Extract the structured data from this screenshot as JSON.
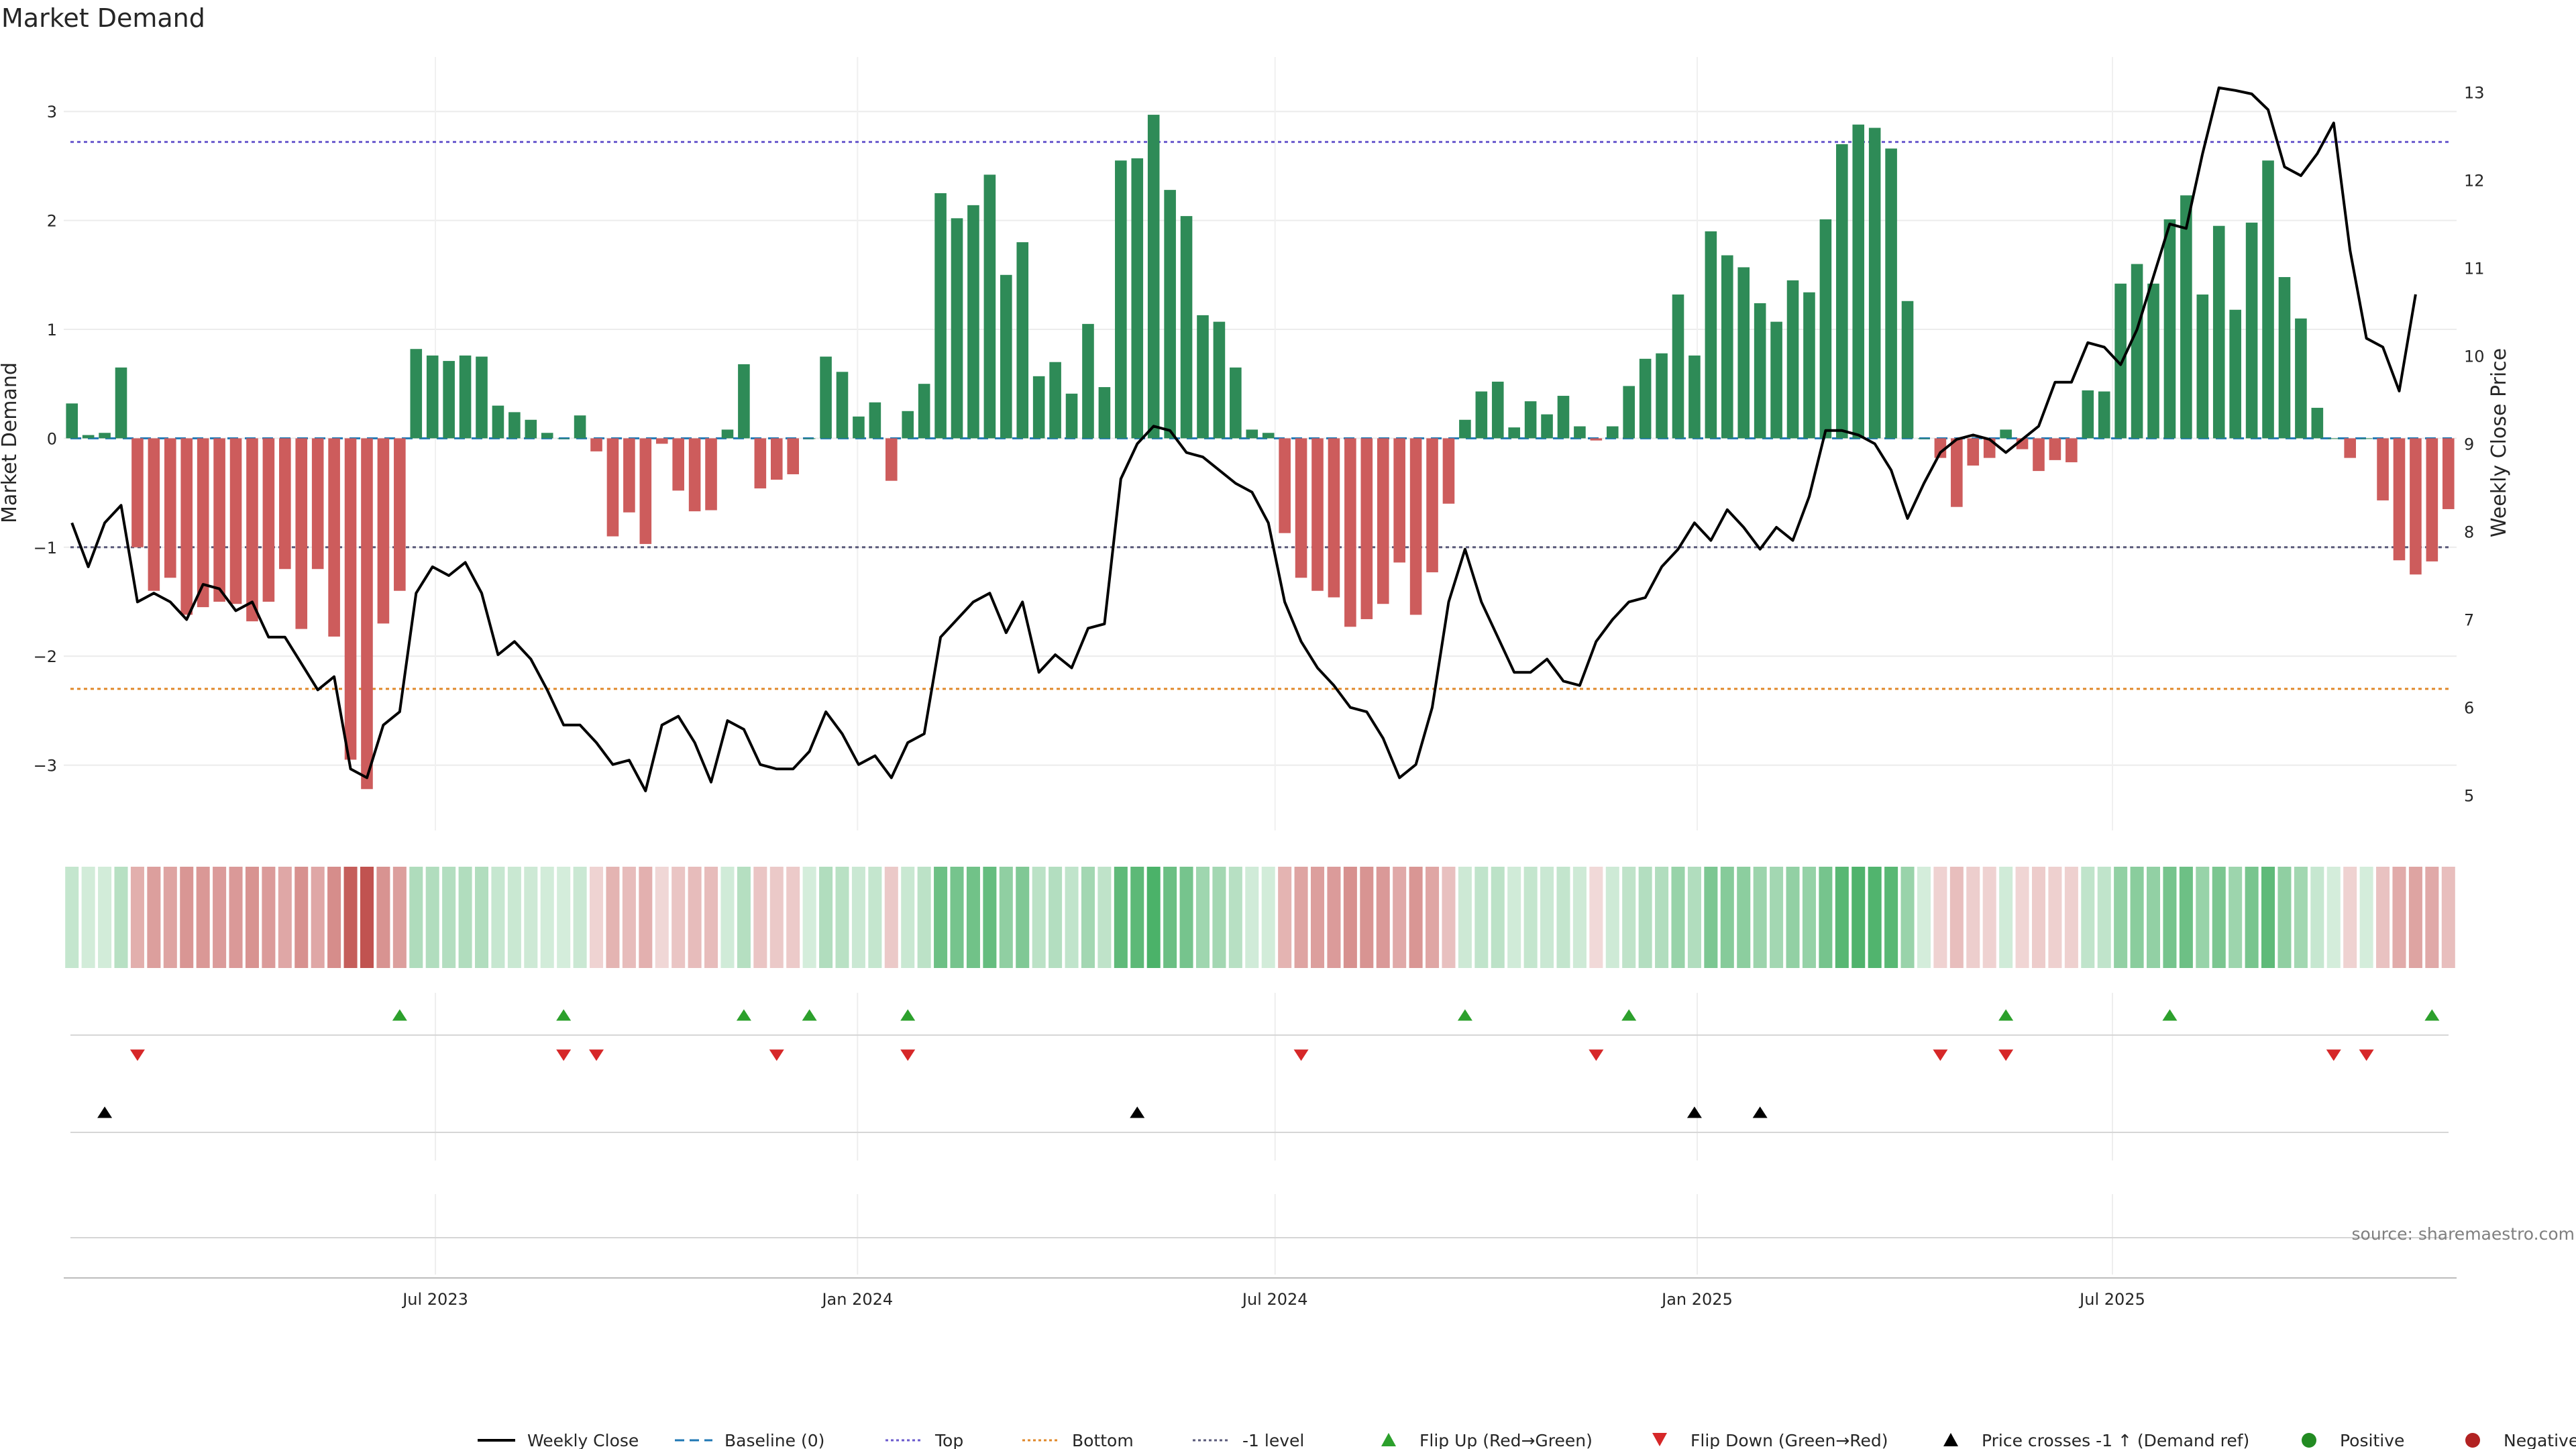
{
  "chart_data": {
    "type": "bar",
    "title": "Market Demand",
    "ylabel": "Market Demand",
    "y2label": "Weekly Close Price",
    "ylim": [
      -3.6,
      3.5
    ],
    "y2lim": [
      4.6,
      13.4
    ],
    "yticks": [
      -3,
      -2,
      -1,
      0,
      1,
      2,
      3
    ],
    "yticklabels": [
      "−3",
      "−2",
      "−1",
      "0",
      "1",
      "2",
      "3"
    ],
    "y2ticks": [
      5,
      6,
      7,
      8,
      9,
      10,
      11,
      12,
      13
    ],
    "x_start": "2023-01-20",
    "x_end": "2025-11-28",
    "xticks": [
      {
        "date": "2023-07-01",
        "label": "Jul 2023"
      },
      {
        "date": "2024-01-01",
        "label": "Jan 2024"
      },
      {
        "date": "2024-07-01",
        "label": "Jul 2024"
      },
      {
        "date": "2025-01-01",
        "label": "Jan 2025"
      },
      {
        "date": "2025-07-01",
        "label": "Jul 2025"
      }
    ],
    "reference_lines": {
      "top": 2.72,
      "bottom": -2.3,
      "minus_one": -1,
      "baseline": 0
    },
    "series": [
      {
        "name": "Weekly Close",
        "type": "line",
        "color": "#000000",
        "values": [
          8.1,
          7.6,
          8.1,
          8.3,
          7.2,
          7.3,
          7.2,
          7.0,
          7.4,
          7.35,
          7.1,
          7.2,
          6.8,
          6.8,
          6.5,
          6.2,
          6.35,
          5.3,
          5.2,
          5.8,
          5.95,
          7.3,
          7.6,
          7.5,
          7.65,
          7.3,
          6.6,
          6.75,
          6.55,
          6.2,
          5.8,
          5.8,
          5.6,
          5.35,
          5.4,
          5.05,
          5.8,
          5.9,
          5.6,
          5.15,
          5.85,
          5.75,
          5.35,
          5.3,
          5.3,
          5.5,
          5.95,
          5.7,
          5.35,
          5.45,
          5.2,
          5.6,
          5.7,
          6.8,
          7.0,
          7.2,
          7.3,
          6.85,
          7.2,
          6.4,
          6.6,
          6.45,
          6.9,
          6.95,
          8.6,
          9.0,
          9.2,
          9.15,
          8.9,
          8.85,
          8.7,
          8.55,
          8.45,
          8.1,
          7.2,
          6.75,
          6.45,
          6.25,
          6.0,
          5.95,
          5.65,
          5.2,
          5.35,
          6.0,
          7.2,
          7.8,
          7.2,
          6.8,
          6.4,
          6.4,
          6.55,
          6.3,
          6.25,
          6.75,
          7.0,
          7.2,
          7.25,
          7.6,
          7.8,
          8.1,
          7.9,
          8.25,
          8.05,
          7.8,
          8.05,
          7.9,
          8.4,
          9.15,
          9.15,
          9.1,
          9.0,
          8.7,
          8.15,
          8.55,
          8.9,
          9.05,
          9.1,
          9.05,
          8.9,
          9.05,
          9.2,
          9.7,
          9.7,
          10.15,
          10.1,
          9.9,
          10.3,
          10.9,
          11.5,
          11.45,
          12.3,
          13.05,
          13.02,
          12.98,
          12.8,
          12.15,
          12.05,
          12.3,
          12.65,
          11.2,
          10.2,
          10.1,
          9.6,
          10.7
        ]
      },
      {
        "name": "Market Demand",
        "type": "bar",
        "values": [
          0.32,
          0.03,
          0.05,
          0.65,
          -1.0,
          -1.4,
          -1.28,
          -1.62,
          -1.55,
          -1.5,
          -1.52,
          -1.68,
          -1.5,
          -1.2,
          -1.75,
          -1.2,
          -1.82,
          -2.95,
          -3.22,
          -1.7,
          -1.4,
          0.82,
          0.76,
          0.71,
          0.76,
          0.75,
          0.3,
          0.24,
          0.17,
          0.05,
          0.0,
          0.21,
          -0.12,
          -0.9,
          -0.68,
          -0.97,
          -0.05,
          -0.48,
          -0.67,
          -0.66,
          0.08,
          0.68,
          -0.46,
          -0.38,
          -0.33,
          0.0,
          0.75,
          0.61,
          0.2,
          0.33,
          -0.39,
          0.25,
          0.5,
          2.25,
          2.02,
          2.14,
          2.42,
          1.5,
          1.8,
          0.57,
          0.7,
          0.41,
          1.05,
          0.47,
          2.55,
          2.57,
          2.97,
          2.28,
          2.04,
          1.13,
          1.07,
          0.65,
          0.08,
          0.05,
          -0.87,
          -1.28,
          -1.4,
          -1.46,
          -1.73,
          -1.66,
          -1.52,
          -1.14,
          -1.62,
          -1.23,
          -0.6,
          0.17,
          0.43,
          0.52,
          0.1,
          0.34,
          0.22,
          0.39,
          0.11,
          -0.02,
          0.11,
          0.48,
          0.73,
          0.78,
          1.32,
          0.76,
          1.9,
          1.68,
          1.57,
          1.24,
          1.07,
          1.45,
          1.34,
          2.01,
          2.7,
          2.88,
          2.85,
          2.66,
          1.26,
          0.0,
          -0.18,
          -0.63,
          -0.25,
          -0.18,
          0.08,
          -0.1,
          -0.3,
          -0.2,
          -0.22,
          0.44,
          0.43,
          1.42,
          1.6,
          1.42,
          2.01,
          2.23,
          1.32,
          1.95,
          1.18,
          1.98,
          2.55,
          1.48,
          1.1,
          0.28,
          0.0,
          -0.18,
          0.0,
          -0.57,
          -1.12,
          -1.25,
          -1.13,
          -0.65
        ]
      }
    ],
    "markers": {
      "flip_up": [
        10,
        15,
        20,
        22,
        25,
        42,
        47,
        58,
        63,
        71
      ],
      "flip_down": [
        2,
        15,
        16,
        21,
        25,
        37,
        46,
        56,
        58,
        68,
        69
      ],
      "price_cross": [
        1,
        32,
        49,
        51
      ]
    },
    "marker_weeks_note_skip": [],
    "legend": [
      "Weekly Close",
      "Baseline (0)",
      "Top",
      "Bottom",
      "-1 level",
      "Flip Up (Red→Green)",
      "Flip Down (Green→Red)",
      "Price crosses -1 ↑ (Demand ref)",
      "Positive",
      "Negative"
    ],
    "legend_position": "bottom",
    "source": "source: sharemaestro.com",
    "colors": {
      "positive": "#2e8b57",
      "negative": "#cd5c5c",
      "top": "#6a5acd",
      "bottom": "#e0882a",
      "minus_one": "#5a5a7a",
      "baseline": "#1f77b4",
      "flip_up": "#2ca02c",
      "flip_down": "#d62728",
      "cross": "#000000",
      "positive_dot": "#228b22",
      "negative_dot": "#b22222"
    }
  }
}
